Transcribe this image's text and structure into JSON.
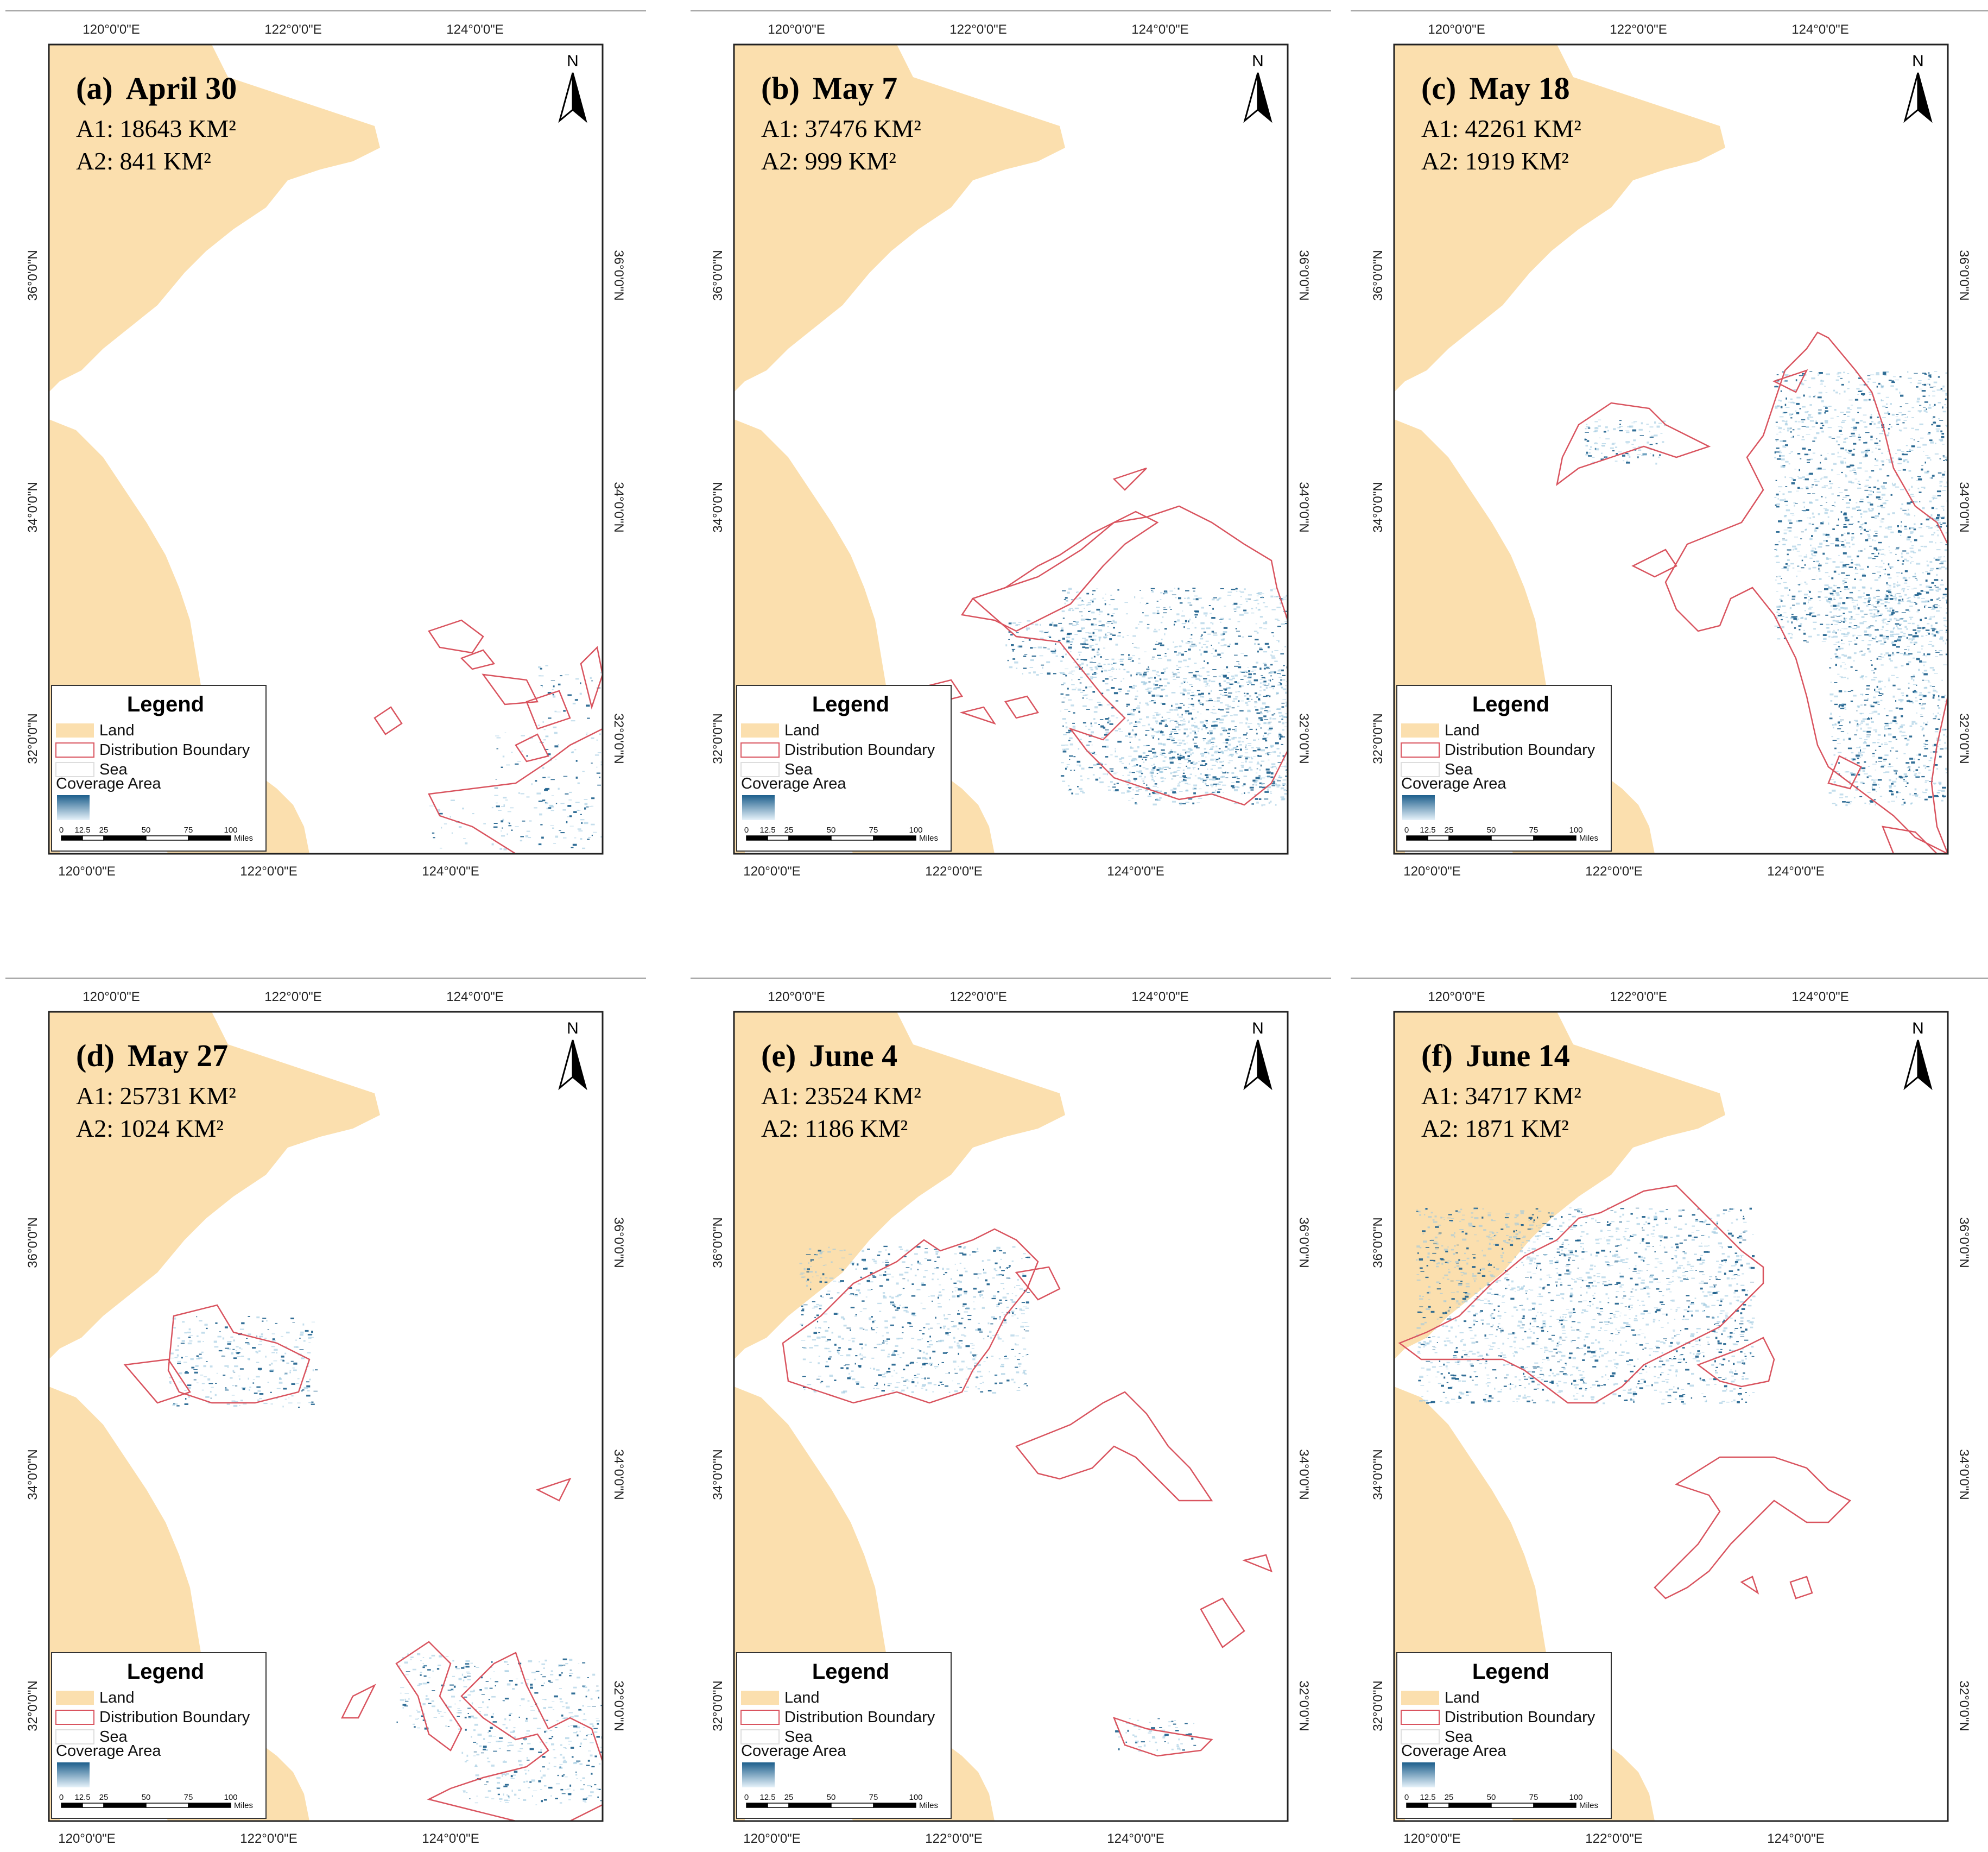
{
  "figure": {
    "panels": [
      {
        "label": "(a)",
        "date": "April 30",
        "a1": "A1: 18643 KM²",
        "a2": "A2: 841 KM²"
      },
      {
        "label": "(b)",
        "date": "May 7",
        "a1": "A1: 37476 KM²",
        "a2": "A2: 999 KM²"
      },
      {
        "label": "(c)",
        "date": "May 18",
        "a1": "A1: 42261 KM²",
        "a2": "A2: 1919 KM²"
      },
      {
        "label": "(d)",
        "date": "May 27",
        "a1": "A1: 25731 KM²",
        "a2": "A2: 1024 KM²"
      },
      {
        "label": "(e)",
        "date": "June 4",
        "a1": "A1: 23524 KM²",
        "a2": "A2: 1186 KM²"
      },
      {
        "label": "(f)",
        "date": "June 14",
        "a1": "A1: 34717 KM²",
        "a2": "A2: 1871 KM²"
      }
    ],
    "lon_ticks": [
      "120°0'0\"E",
      "122°0'0\"E",
      "124°0'0\"E"
    ],
    "lat_ticks": [
      "36°0'0\"N",
      "34°0'0\"N",
      "32°0'0\"N"
    ],
    "north_label": "N",
    "legend": {
      "title": "Legend",
      "items": [
        "Land",
        "Distribution Boundary",
        "Sea"
      ],
      "coverage": "Coverage Area"
    },
    "scale": {
      "ticks": [
        "0",
        "12.5",
        "25",
        "50",
        "75",
        "100"
      ],
      "unit": "Miles"
    },
    "colors": {
      "land": "#fbdfae",
      "boundary": "#d9545f",
      "coverage_dark": "#1d5f8c",
      "coverage_light": "#9cc8e0",
      "frame": "#222222"
    }
  }
}
